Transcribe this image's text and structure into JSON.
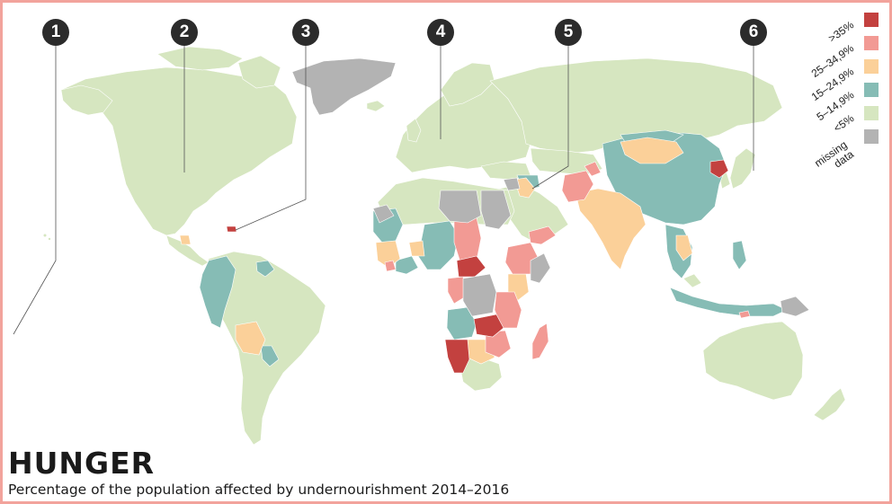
{
  "title": "HUNGER",
  "subtitle": "Percentage of the population affected by undernourishment 2014–2016",
  "markers": [
    "1",
    "2",
    "3",
    "4",
    "5",
    "6"
  ],
  "legend": [
    {
      "label": ">35%",
      "color": "#c3413f"
    },
    {
      "label": "25–34,9%",
      "color": "#f29a94"
    },
    {
      "label": "15–24,9%",
      "color": "#fbd099"
    },
    {
      "label": "5–14,9%",
      "color": "#86bcb5"
    },
    {
      "label": "<5%",
      "color": "#d6e6c0"
    },
    {
      "label": "missing data",
      "color": "#b3b3b3"
    }
  ],
  "colors": {
    "border": "#f2a39c",
    "marker": "#2b2b2b",
    "land": "#d6e6c0"
  }
}
